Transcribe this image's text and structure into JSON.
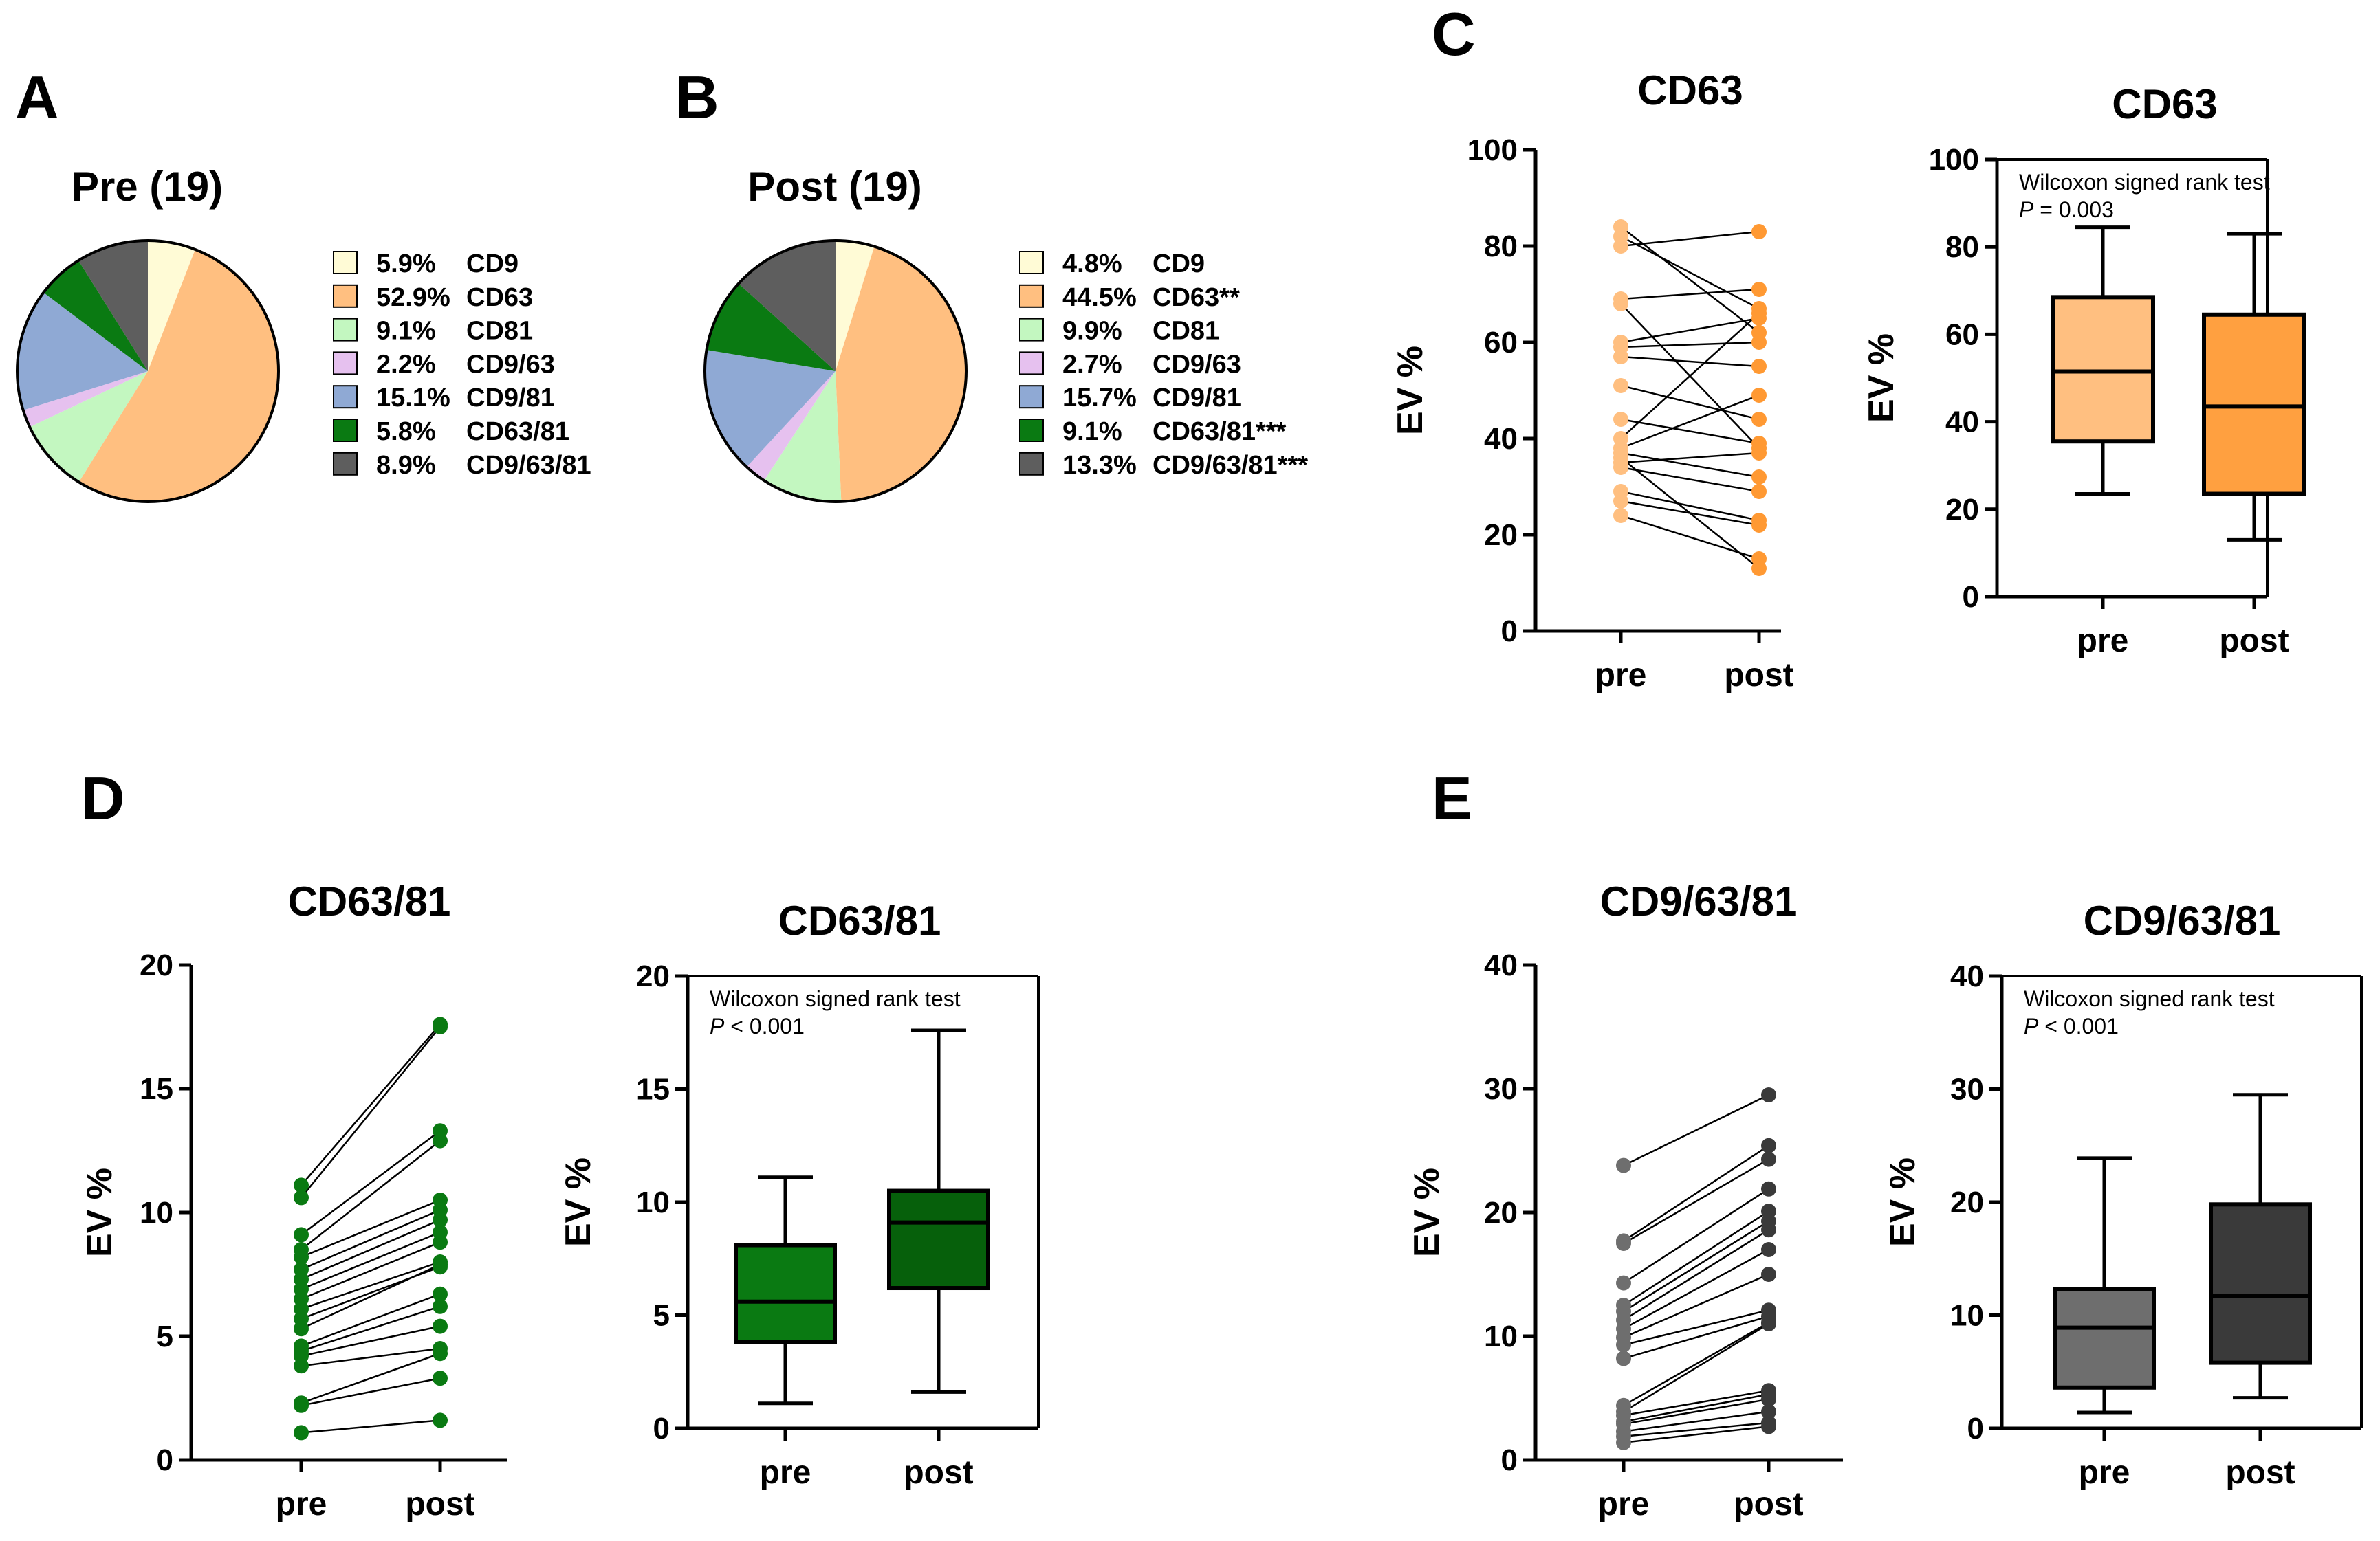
{
  "panel_labels": {
    "A": "A",
    "B": "B",
    "C": "C",
    "D": "D",
    "E": "E"
  },
  "chart_data": [
    {
      "panel": "A",
      "type": "pie",
      "title": "Pre (19)",
      "slices": [
        {
          "label": "CD9",
          "value": 5.9,
          "value_label": "5.9%",
          "color": "#FFFBD6"
        },
        {
          "label": "CD63",
          "value": 52.9,
          "value_label": "52.9%",
          "color": "#FFBF80"
        },
        {
          "label": "CD81",
          "value": 9.1,
          "value_label": "9.1%",
          "color": "#C3F7C0"
        },
        {
          "label": "CD9/63",
          "value": 2.2,
          "value_label": "2.2%",
          "color": "#E6C1EF"
        },
        {
          "label": "CD9/81",
          "value": 15.1,
          "value_label": "15.1%",
          "color": "#8FA9D4"
        },
        {
          "label": "CD63/81",
          "value": 5.8,
          "value_label": "5.8%",
          "color": "#0A7A12"
        },
        {
          "label": "CD9/63/81",
          "value": 8.9,
          "value_label": "8.9%",
          "color": "#5E5E5E"
        }
      ]
    },
    {
      "panel": "B",
      "type": "pie",
      "title": "Post (19)",
      "slices": [
        {
          "label": "CD9",
          "value": 4.8,
          "value_label": "4.8%",
          "color": "#FFFBD6"
        },
        {
          "label": "CD63**",
          "value": 44.5,
          "value_label": "44.5%",
          "color": "#FFBF80"
        },
        {
          "label": "CD81",
          "value": 9.9,
          "value_label": "9.9%",
          "color": "#C3F7C0"
        },
        {
          "label": "CD9/63",
          "value": 2.7,
          "value_label": "2.7%",
          "color": "#E6C1EF"
        },
        {
          "label": "CD9/81",
          "value": 15.7,
          "value_label": "15.7%",
          "color": "#8FA9D4"
        },
        {
          "label": "CD63/81***",
          "value": 9.1,
          "value_label": "9.1%",
          "color": "#0A7A12"
        },
        {
          "label": "CD9/63/81***",
          "value": 13.3,
          "value_label": "13.3%",
          "color": "#5E5E5E"
        }
      ]
    },
    {
      "panel": "C",
      "type": "scatter",
      "subtype": "paired",
      "title": "CD63",
      "ylabel": "EV %",
      "categories": [
        "pre",
        "post"
      ],
      "ylim": [
        0,
        100
      ],
      "yticks": [
        0,
        20,
        40,
        60,
        80,
        100
      ],
      "pre_color": "#FFBF80",
      "post_color": "#FF9933",
      "pairs": [
        [
          84,
          62
        ],
        [
          82,
          67
        ],
        [
          80,
          83
        ],
        [
          69,
          71
        ],
        [
          68,
          38
        ],
        [
          60,
          65
        ],
        [
          59,
          60
        ],
        [
          57,
          55
        ],
        [
          51,
          44
        ],
        [
          44,
          39
        ],
        [
          40,
          66
        ],
        [
          38,
          49
        ],
        [
          37,
          32
        ],
        [
          35,
          37
        ],
        [
          34,
          29
        ],
        [
          29,
          23
        ],
        [
          27,
          22
        ],
        [
          24,
          15
        ],
        [
          36,
          13
        ]
      ]
    },
    {
      "panel": "C",
      "type": "box",
      "title": "CD63",
      "ylabel": "EV %",
      "categories": [
        "pre",
        "post"
      ],
      "ylim": [
        0,
        100
      ],
      "yticks": [
        0,
        20,
        40,
        60,
        80,
        100
      ],
      "annotation": {
        "line1": "Wilcoxon signed rank test",
        "p_symbol": "P",
        "p_rest": " = 0.003"
      },
      "boxes": [
        {
          "label": "pre",
          "min": 23.5,
          "q1": 35.5,
          "median": 51.5,
          "q3": 68.5,
          "max": 84.5,
          "color": "#FFBF80"
        },
        {
          "label": "post",
          "min": 13,
          "q1": 23.5,
          "median": 43.5,
          "q3": 64.5,
          "max": 83,
          "color": "#FFA040"
        }
      ]
    },
    {
      "panel": "D",
      "type": "scatter",
      "subtype": "paired",
      "title": "CD63/81",
      "ylabel": "EV %",
      "categories": [
        "pre",
        "post"
      ],
      "ylim": [
        0,
        20
      ],
      "yticks": [
        0,
        5,
        10,
        15,
        20
      ],
      "pre_color": "#0A7A12",
      "post_color": "#0A7A12",
      "pairs": [
        [
          11.1,
          17.6
        ],
        [
          10.6,
          17.5
        ],
        [
          9.1,
          13.3
        ],
        [
          8.5,
          12.9
        ],
        [
          8.2,
          10.5
        ],
        [
          7.7,
          10.1
        ],
        [
          7.3,
          9.7
        ],
        [
          6.9,
          9.2
        ],
        [
          6.5,
          8.8
        ],
        [
          6.1,
          8.0
        ],
        [
          5.7,
          7.8
        ],
        [
          5.3,
          7.9
        ],
        [
          4.6,
          6.7
        ],
        [
          4.4,
          6.2
        ],
        [
          4.2,
          5.4
        ],
        [
          3.8,
          4.5
        ],
        [
          2.3,
          4.3
        ],
        [
          2.2,
          3.3
        ],
        [
          1.1,
          1.6
        ]
      ]
    },
    {
      "panel": "D",
      "type": "box",
      "title": "CD63/81",
      "ylabel": "EV %",
      "categories": [
        "pre",
        "post"
      ],
      "ylim": [
        0,
        20
      ],
      "yticks": [
        0,
        5,
        10,
        15,
        20
      ],
      "annotation": {
        "line1": "Wilcoxon signed rank test",
        "p_symbol": "P",
        "p_rest": " < 0.001"
      },
      "boxes": [
        {
          "label": "pre",
          "min": 1.1,
          "q1": 3.8,
          "median": 5.6,
          "q3": 8.1,
          "max": 11.1,
          "color": "#0A7A12"
        },
        {
          "label": "post",
          "min": 1.6,
          "q1": 6.2,
          "median": 9.1,
          "q3": 10.5,
          "max": 17.6,
          "color": "#06600B"
        }
      ]
    },
    {
      "panel": "E",
      "type": "scatter",
      "subtype": "paired",
      "title": "CD9/63/81",
      "ylabel": "EV %",
      "categories": [
        "pre",
        "post"
      ],
      "ylim": [
        0,
        40
      ],
      "yticks": [
        0,
        10,
        20,
        30,
        40
      ],
      "pre_color": "#6E6E6E",
      "post_color": "#3A3A3A",
      "pairs": [
        [
          23.8,
          29.5
        ],
        [
          17.7,
          25.4
        ],
        [
          17.5,
          24.3
        ],
        [
          14.3,
          21.9
        ],
        [
          12.5,
          20.1
        ],
        [
          12.0,
          19.3
        ],
        [
          11.3,
          18.6
        ],
        [
          10.6,
          17.0
        ],
        [
          9.9,
          15.0
        ],
        [
          9.3,
          12.1
        ],
        [
          8.2,
          11.6
        ],
        [
          4.4,
          11.1
        ],
        [
          3.9,
          11.0
        ],
        [
          3.6,
          5.6
        ],
        [
          3.1,
          5.3
        ],
        [
          2.9,
          4.9
        ],
        [
          2.3,
          3.9
        ],
        [
          1.9,
          3.0
        ],
        [
          1.4,
          2.7
        ]
      ]
    },
    {
      "panel": "E",
      "type": "box",
      "title": "CD9/63/81",
      "ylabel": "EV %",
      "categories": [
        "pre",
        "post"
      ],
      "ylim": [
        0,
        40
      ],
      "yticks": [
        0,
        10,
        20,
        30,
        40
      ],
      "annotation": {
        "line1": "Wilcoxon signed rank test",
        "p_symbol": "P",
        "p_rest": " < 0.001"
      },
      "boxes": [
        {
          "label": "pre",
          "min": 1.4,
          "q1": 3.6,
          "median": 8.9,
          "q3": 12.3,
          "max": 23.9,
          "color": "#6E6E6E"
        },
        {
          "label": "post",
          "min": 2.7,
          "q1": 5.8,
          "median": 11.7,
          "q3": 19.8,
          "max": 29.5,
          "color": "#3A3A3A"
        }
      ]
    }
  ]
}
